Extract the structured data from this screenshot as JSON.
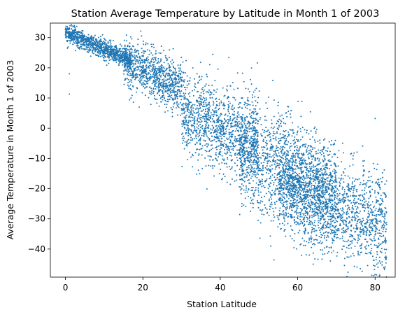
{
  "chart_data": {
    "type": "scatter",
    "title": "Station Average Temperature by Latitude in Month 1 of 2003",
    "xlabel": "Station Latitude",
    "ylabel": "Average Temperature in Month 1 of 2003",
    "xlim": [
      -3.9,
      85.2
    ],
    "ylim": [
      -49.3,
      34.8
    ],
    "xticks": [
      0,
      20,
      40,
      60,
      80
    ],
    "yticks": [
      -40,
      -30,
      -20,
      -10,
      0,
      10,
      20,
      30
    ],
    "grid": false,
    "legend": "none",
    "marker_color": "#1f77b4",
    "marker_radius_note": "small dots",
    "point_clusters": [
      {
        "x_range": [
          0,
          17
        ],
        "y_center": 27,
        "y_spread": 1.5
      },
      {
        "x_range": [
          15,
          30
        ],
        "y_center": 18,
        "y_spread": 4
      },
      {
        "x_range": [
          30,
          50
        ],
        "y_center": 0,
        "y_spread": 7
      },
      {
        "x_range": [
          45,
          70
        ],
        "y_center": -15,
        "y_spread": 9
      },
      {
        "x_range": [
          55,
          83
        ],
        "y_center": -25,
        "y_spread": 8
      }
    ],
    "sample_points": [
      {
        "x": 0.5,
        "y": 26.5
      },
      {
        "x": 1.0,
        "y": 18.0
      },
      {
        "x": 1.0,
        "y": 11.3
      },
      {
        "x": 3.0,
        "y": 28.5
      },
      {
        "x": 5.0,
        "y": 26.0
      },
      {
        "x": 8.0,
        "y": 29.5
      },
      {
        "x": 10.0,
        "y": 28.0
      },
      {
        "x": 12.0,
        "y": 27.0
      },
      {
        "x": 14.0,
        "y": 26.0
      },
      {
        "x": 16.0,
        "y": 25.0
      },
      {
        "x": 18.0,
        "y": 23.0
      },
      {
        "x": 20.0,
        "y": 20.0
      },
      {
        "x": 22.0,
        "y": 17.0
      },
      {
        "x": 24.0,
        "y": 14.0
      },
      {
        "x": 26.0,
        "y": 12.0
      },
      {
        "x": 28.0,
        "y": 8.0
      },
      {
        "x": 30.0,
        "y": 6.0
      },
      {
        "x": 32.0,
        "y": 4.0
      },
      {
        "x": 34.0,
        "y": 18.0
      },
      {
        "x": 35.0,
        "y": 2.0
      },
      {
        "x": 37.0,
        "y": -1.0
      },
      {
        "x": 39.0,
        "y": -3.0
      },
      {
        "x": 41.0,
        "y": -5.0
      },
      {
        "x": 43.0,
        "y": -7.0
      },
      {
        "x": 45.0,
        "y": -8.0
      },
      {
        "x": 47.0,
        "y": -10.0
      },
      {
        "x": 49.0,
        "y": -12.0
      },
      {
        "x": 51.0,
        "y": -14.0
      },
      {
        "x": 53.0,
        "y": -16.0
      },
      {
        "x": 55.0,
        "y": -18.0
      },
      {
        "x": 57.0,
        "y": -20.0
      },
      {
        "x": 59.0,
        "y": -22.0
      },
      {
        "x": 61.0,
        "y": -24.0
      },
      {
        "x": 63.0,
        "y": -42.0
      },
      {
        "x": 64.0,
        "y": -45.0
      },
      {
        "x": 66.0,
        "y": -28.0
      },
      {
        "x": 68.0,
        "y": -22.0
      },
      {
        "x": 70.0,
        "y": -25.0
      },
      {
        "x": 72.0,
        "y": -28.0
      },
      {
        "x": 75.0,
        "y": -30.0
      },
      {
        "x": 78.0,
        "y": -25.0
      },
      {
        "x": 80.0,
        "y": -30.0
      },
      {
        "x": 82.0,
        "y": -27.5
      },
      {
        "x": 82.5,
        "y": -29.0
      },
      {
        "x": 79.0,
        "y": -16.0
      }
    ]
  }
}
